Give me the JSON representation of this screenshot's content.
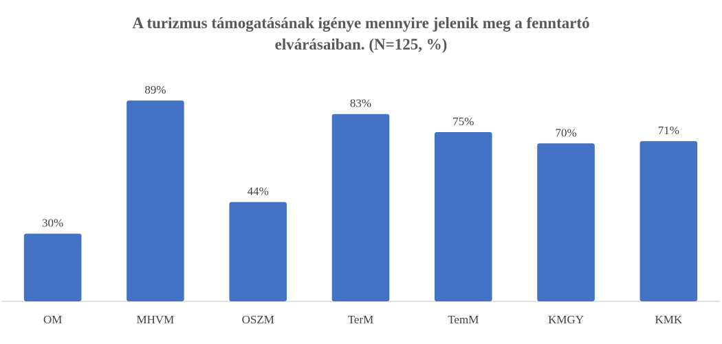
{
  "chart_data": {
    "type": "bar",
    "title": "A turizmus támogatásának igénye mennyire jelenik meg a fenntartó elvárásaiban. (N=125, %)",
    "categories": [
      "OM",
      "MHVM",
      "OSZM",
      "TerM",
      "TemM",
      "KMGY",
      "KMK"
    ],
    "values": [
      30,
      89,
      44,
      83,
      75,
      70,
      71
    ],
    "value_labels": [
      "30%",
      "89%",
      "44%",
      "83%",
      "75%",
      "70%",
      "71%"
    ],
    "color": "#4472c4",
    "ylim": [
      0,
      100
    ]
  }
}
